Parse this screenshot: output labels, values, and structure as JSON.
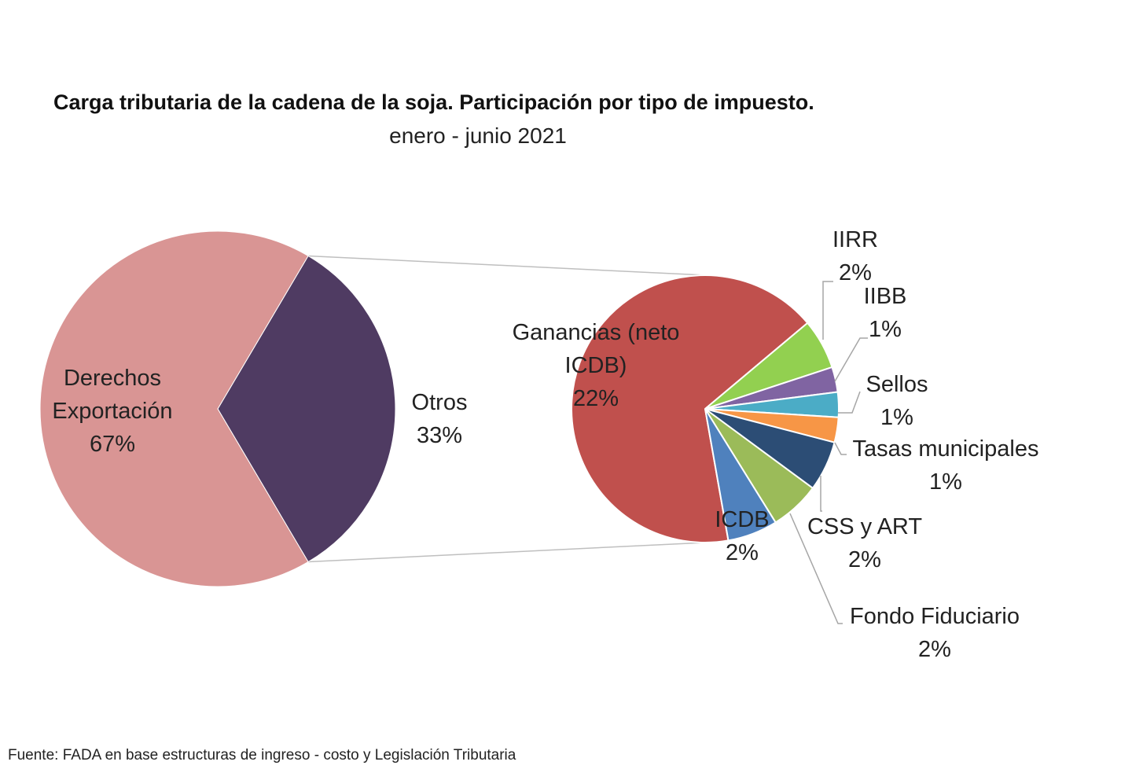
{
  "chart_data": {
    "type": "pie",
    "subtype": "pie-of-pie",
    "title": "Carga tributaria de la cadena de la soja. Participación por tipo de impuesto.",
    "subtitle": "enero - junio 2021",
    "source": "Fuente: FADA en base estructuras de ingreso - costo y Legislación Tributaria",
    "primary": {
      "slices": [
        {
          "name_lines": [
            "Derechos",
            "Exportación"
          ],
          "value": 67,
          "label": "67%",
          "color": "#d99594"
        },
        {
          "name_lines": [
            "Otros"
          ],
          "value": 33,
          "label": "33%",
          "color": "#4f3b62"
        }
      ]
    },
    "secondary": {
      "slices": [
        {
          "name_lines": [
            "Ganancias (neto",
            "ICDB)"
          ],
          "value": 22,
          "label": "22%",
          "color": "#c0504d"
        },
        {
          "name_lines": [
            "IIRR"
          ],
          "value": 2,
          "label": "2%",
          "color": "#92d050"
        },
        {
          "name_lines": [
            "IIBB"
          ],
          "value": 1,
          "label": "1%",
          "color": "#8064a2"
        },
        {
          "name_lines": [
            "Sellos"
          ],
          "value": 1,
          "label": "1%",
          "color": "#4bacc6"
        },
        {
          "name_lines": [
            "Tasas municipales"
          ],
          "value": 1,
          "label": "1%",
          "color": "#f79646"
        },
        {
          "name_lines": [
            "CSS y ART"
          ],
          "value": 2,
          "label": "2%",
          "color": "#2c4d75"
        },
        {
          "name_lines": [
            "Fondo Fiduciario"
          ],
          "value": 2,
          "label": "2%",
          "color": "#9bbb59"
        },
        {
          "name_lines": [
            "ICDB"
          ],
          "value": 2,
          "label": "2%",
          "color": "#4f81bd"
        }
      ]
    }
  }
}
